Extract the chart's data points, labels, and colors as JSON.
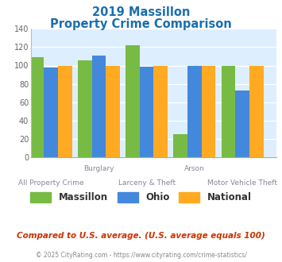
{
  "title_line1": "2019 Massillon",
  "title_line2": "Property Crime Comparison",
  "title_color": "#1a6faf",
  "xlabel_top": [
    "",
    "Burglary",
    "",
    "Arson",
    ""
  ],
  "xlabel_bottom": [
    "All Property Crime",
    "",
    "Larceny & Theft",
    "",
    "Motor Vehicle Theft"
  ],
  "massillon": [
    109,
    106,
    122,
    25,
    100
  ],
  "ohio": [
    98,
    111,
    99,
    100,
    73
  ],
  "national": [
    100,
    100,
    100,
    100,
    100
  ],
  "bar_colors": {
    "massillon": "#77bb44",
    "ohio": "#4488dd",
    "national": "#ffaa22"
  },
  "ylim": [
    0,
    140
  ],
  "yticks": [
    0,
    20,
    40,
    60,
    80,
    100,
    120,
    140
  ],
  "plot_bg": "#ddeeff",
  "legend_labels": [
    "Massillon",
    "Ohio",
    "National"
  ],
  "footnote1": "Compared to U.S. average. (U.S. average equals 100)",
  "footnote2": "© 2025 CityRating.com - https://www.cityrating.com/crime-statistics/",
  "footnote1_color": "#cc3300",
  "footnote2_color": "#888888",
  "xlabel_top_color": "#888899",
  "xlabel_bottom_color": "#888899"
}
